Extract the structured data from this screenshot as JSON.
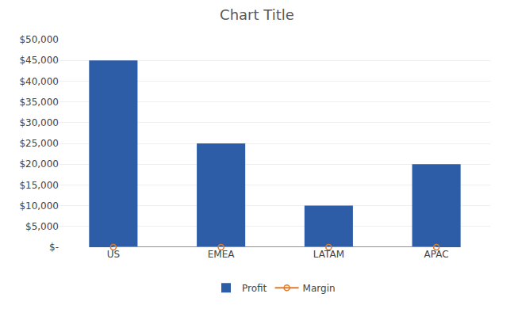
{
  "chart_data": {
    "type": "bar",
    "title": "Chart Title",
    "categories": [
      "US",
      "EMEA",
      "LATAM",
      "APAC"
    ],
    "series": [
      {
        "name": "Profit",
        "type": "bar",
        "color": "#2E5DA8",
        "values": [
          45000,
          25000,
          10000,
          20000
        ]
      },
      {
        "name": "Margin",
        "type": "line",
        "color": "#E07B2A",
        "values": [
          0,
          0,
          0,
          0
        ],
        "axis": "y2",
        "marker": "circle-open"
      }
    ],
    "ylim": [
      0,
      50000
    ],
    "yticks": [
      {
        "value": 0,
        "label": "$-"
      },
      {
        "value": 5000,
        "label": "$5,000"
      },
      {
        "value": 10000,
        "label": "$10,000"
      },
      {
        "value": 15000,
        "label": "$15,000"
      },
      {
        "value": 20000,
        "label": "$20,000"
      },
      {
        "value": 25000,
        "label": "$25,000"
      },
      {
        "value": 30000,
        "label": "$30,000"
      },
      {
        "value": 35000,
        "label": "$35,000"
      },
      {
        "value": 40000,
        "label": "$40,000"
      },
      {
        "value": 45000,
        "label": "$45,000"
      },
      {
        "value": 50000,
        "label": "$50,000"
      }
    ],
    "y2lim": [
      0,
      50000
    ],
    "y2ticks": [],
    "grid": true,
    "legend": "bottom"
  }
}
